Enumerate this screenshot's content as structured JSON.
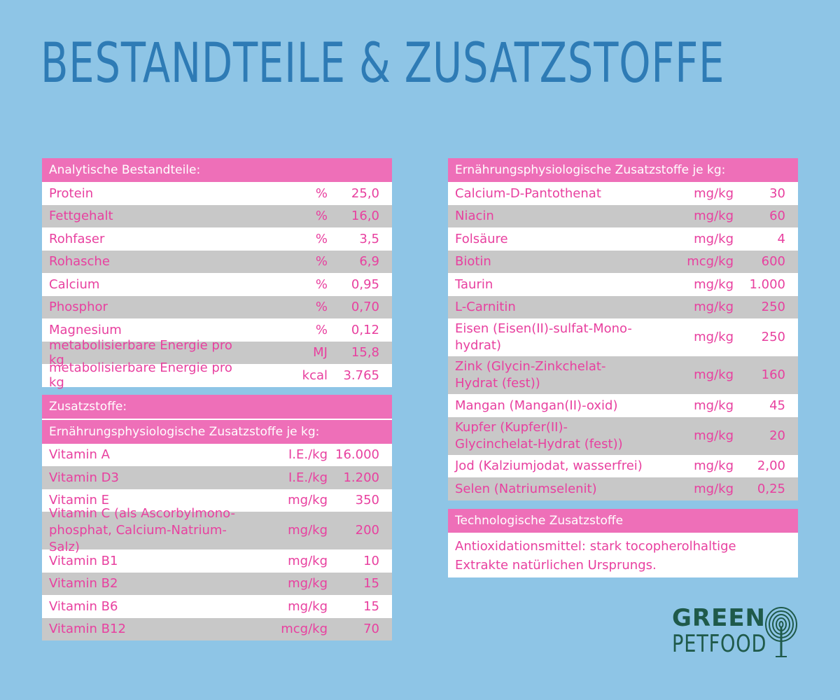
{
  "title": "Bestandteile & Zusatzstoffe",
  "analytisch": {
    "header": "Analytische Bestandteile:",
    "rows": [
      {
        "name": "Protein",
        "unit": "%",
        "value": "25,0"
      },
      {
        "name": "Fettgehalt",
        "unit": "%",
        "value": "16,0"
      },
      {
        "name": "Rohfaser",
        "unit": "%",
        "value": "3,5"
      },
      {
        "name": "Rohasche",
        "unit": "%",
        "value": "6,9"
      },
      {
        "name": "Calcium",
        "unit": "%",
        "value": "0,95"
      },
      {
        "name": "Phosphor",
        "unit": "%",
        "value": "0,70"
      },
      {
        "name": "Magnesium",
        "unit": "%",
        "value": "0,12"
      },
      {
        "name": "metabolisierbare Energie pro kg",
        "unit": "MJ",
        "value": "15,8"
      },
      {
        "name": "metabolisierbare Energie pro kg",
        "unit": "kcal",
        "value": "3.765"
      }
    ]
  },
  "zusatzstoffe": {
    "header": "Zusatzstoffe:",
    "subheader": "Ernährungsphysiologische Zusatzstoffe je kg:",
    "rows": [
      {
        "name": "Vitamin A",
        "unit": "I.E./kg",
        "value": "16.000"
      },
      {
        "name": "Vitamin D3",
        "unit": "I.E./kg",
        "value": "1.200"
      },
      {
        "name": "Vitamin E",
        "unit": "mg/kg",
        "value": "350"
      },
      {
        "name": "Vitamin C (als Ascorbylmono-phosphat, Calcium-Natrium-Salz)",
        "unit": "mg/kg",
        "value": "200"
      },
      {
        "name": "Vitamin B1",
        "unit": "mg/kg",
        "value": "10"
      },
      {
        "name": "Vitamin B2",
        "unit": "mg/kg",
        "value": "15"
      },
      {
        "name": "Vitamin B6",
        "unit": "mg/kg",
        "value": "15"
      },
      {
        "name": "Vitamin B12",
        "unit": "mcg/kg",
        "value": "70"
      }
    ]
  },
  "ernaehrung": {
    "header": "Ernährungsphysiologische Zusatzstoffe je kg:",
    "rows": [
      {
        "name": "Calcium-D-Pantothenat",
        "unit": "mg/kg",
        "value": "30"
      },
      {
        "name": "Niacin",
        "unit": "mg/kg",
        "value": "60"
      },
      {
        "name": "Folsäure",
        "unit": "mg/kg",
        "value": "4"
      },
      {
        "name": "Biotin",
        "unit": "mcg/kg",
        "value": "600"
      },
      {
        "name": "Taurin",
        "unit": "mg/kg",
        "value": "1.000"
      },
      {
        "name": "L-Carnitin",
        "unit": "mg/kg",
        "value": "250"
      },
      {
        "name": "Eisen (Eisen(II)-sulfat-Mono-hydrat)",
        "unit": "mg/kg",
        "value": "250"
      },
      {
        "name": "Zink (Glycin-Zinkchelat-Hydrat (fest))",
        "unit": "mg/kg",
        "value": "160"
      },
      {
        "name": "Mangan (Mangan(II)-oxid)",
        "unit": "mg/kg",
        "value": "45"
      },
      {
        "name": "Kupfer (Kupfer(II)-Glycinchelat-Hydrat (fest))",
        "unit": "mg/kg",
        "value": "20"
      },
      {
        "name": "Jod (Kalziumjodat, wasserfrei)",
        "unit": "mg/kg",
        "value": "2,00"
      },
      {
        "name": "Selen (Natriumselenit)",
        "unit": "mg/kg",
        "value": "0,25"
      }
    ]
  },
  "technologisch": {
    "header": "Technologische Zusatzstoffe",
    "text": "Antioxidationsmittel: stark tocopherolhaltige Extrakte natürlichen Ursprungs."
  },
  "logo": {
    "line1": "GREEN",
    "line2": "PETFOOD",
    "icon": "fingerprint-tree-icon"
  },
  "colors": {
    "background": "#8ec5e6",
    "title": "#2e7bb5",
    "header": "#ee6fb8",
    "text": "#e8409f",
    "stripe": "#c8c8c8",
    "logo": "#1f5a4a"
  }
}
